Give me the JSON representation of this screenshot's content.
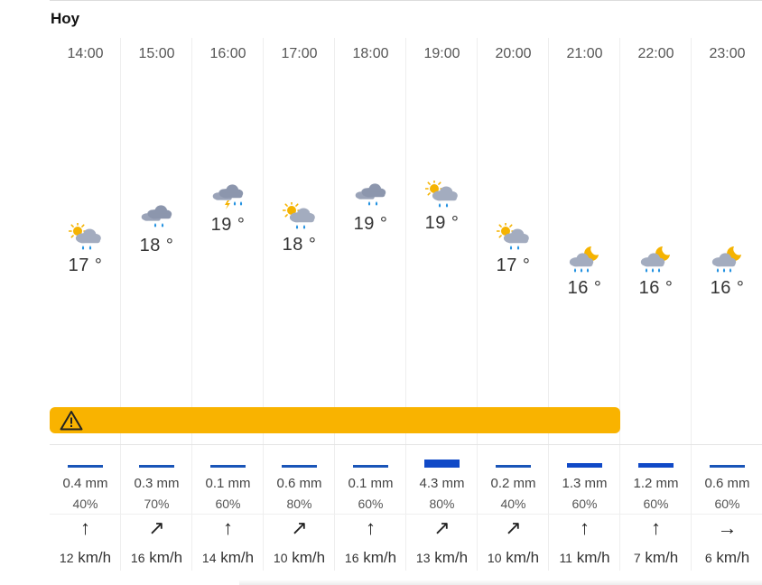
{
  "title": "Hoy",
  "temp_unit": "°",
  "hours": [
    {
      "time": "14:00",
      "icon": "sun-cloud-rain-icon",
      "temp": "17",
      "rain_mm": "0.4 mm",
      "rain_pct": "40%",
      "wind_dir": "↑",
      "wind_speed": "12",
      "wind_unit": "km/h"
    },
    {
      "time": "15:00",
      "icon": "cloud-rain-icon",
      "temp": "18",
      "rain_mm": "0.3 mm",
      "rain_pct": "70%",
      "wind_dir": "↗",
      "wind_speed": "16",
      "wind_unit": "km/h"
    },
    {
      "time": "16:00",
      "icon": "cloud-storm-icon",
      "temp": "19",
      "rain_mm": "0.1 mm",
      "rain_pct": "60%",
      "wind_dir": "↑",
      "wind_speed": "14",
      "wind_unit": "km/h"
    },
    {
      "time": "17:00",
      "icon": "sun-cloud-rain-icon",
      "temp": "18",
      "rain_mm": "0.6 mm",
      "rain_pct": "80%",
      "wind_dir": "↗",
      "wind_speed": "10",
      "wind_unit": "km/h"
    },
    {
      "time": "18:00",
      "icon": "cloud-rain-icon",
      "temp": "19",
      "rain_mm": "0.1 mm",
      "rain_pct": "60%",
      "wind_dir": "↑",
      "wind_speed": "16",
      "wind_unit": "km/h"
    },
    {
      "time": "19:00",
      "icon": "sun-cloud-rain-icon",
      "temp": "19",
      "rain_mm": "4.3 mm",
      "rain_pct": "80%",
      "wind_dir": "↗",
      "wind_speed": "13",
      "wind_unit": "km/h"
    },
    {
      "time": "20:00",
      "icon": "sun-cloud-rain-icon",
      "temp": "17",
      "rain_mm": "0.2 mm",
      "rain_pct": "40%",
      "wind_dir": "↗",
      "wind_speed": "10",
      "wind_unit": "km/h"
    },
    {
      "time": "21:00",
      "icon": "moon-cloud-rain-icon",
      "temp": "16",
      "rain_mm": "1.3 mm",
      "rain_pct": "60%",
      "wind_dir": "↑",
      "wind_speed": "11",
      "wind_unit": "km/h"
    },
    {
      "time": "22:00",
      "icon": "moon-cloud-rain-icon",
      "temp": "16",
      "rain_mm": "1.2 mm",
      "rain_pct": "60%",
      "wind_dir": "↑",
      "wind_speed": "7",
      "wind_unit": "km/h"
    },
    {
      "time": "23:00",
      "icon": "moon-cloud-rain-icon",
      "temp": "16",
      "rain_mm": "0.6 mm",
      "rain_pct": "60%",
      "wind_dir": "→",
      "wind_speed": "6",
      "wind_unit": "km/h"
    }
  ],
  "alert": {
    "icon": "warning-icon",
    "color": "#f9b300"
  },
  "colors": {
    "rain_bar": "#1a55b8",
    "alert": "#f9b300",
    "sun": "#f5b301",
    "cloud": "#8c96ad",
    "rain_drop": "#1e8fe0"
  }
}
